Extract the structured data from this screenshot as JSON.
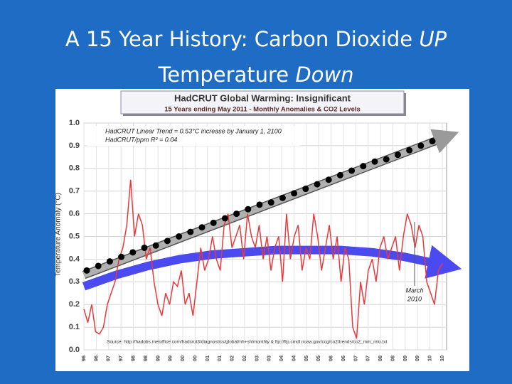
{
  "slide_title": {
    "line1": "A 15 Year History: Carbon Dioxide",
    "line1_emphasis": "UP",
    "line2": "Temperature",
    "line2_emphasis": "Down"
  },
  "chart_data": {
    "type": "line",
    "title": "HadCRUT Global Warming: Insignificant",
    "subtitle": "15 Years ending May 2011 - Monthly Anomalies & CO2 Levels",
    "y_label": "Temperature Anomaly (°C)",
    "ylim": [
      0,
      1
    ],
    "yticks": [
      {
        "value": 0,
        "label": "0.0"
      },
      0.1,
      0.2,
      0.3,
      0.4,
      0.5,
      0.6,
      0.7,
      0.8,
      0.9,
      {
        "value": 1,
        "label": "1.0"
      }
    ],
    "grid": true,
    "xtick_labels": [
      "96",
      "96",
      "97",
      "97",
      "98",
      "98",
      "99",
      "99",
      "00",
      "00",
      "01",
      "01",
      "02",
      "02",
      "03",
      "03",
      "04",
      "04",
      "05",
      "05",
      "06",
      "06",
      "07",
      "07",
      "08",
      "08",
      "09",
      "09",
      "10",
      "10"
    ],
    "temperature": {
      "color": "#e8393c",
      "values": [
        0.18,
        0.12,
        0.2,
        0.08,
        0.07,
        0.1,
        0.2,
        0.25,
        0.3,
        0.4,
        0.45,
        0.55,
        0.75,
        0.5,
        0.6,
        0.55,
        0.4,
        0.45,
        0.3,
        0.2,
        0.15,
        0.25,
        0.2,
        0.3,
        0.28,
        0.35,
        0.2,
        0.25,
        0.15,
        0.3,
        0.45,
        0.35,
        0.4,
        0.5,
        0.4,
        0.35,
        0.55,
        0.6,
        0.45,
        0.5,
        0.55,
        0.4,
        0.6,
        0.5,
        0.45,
        0.55,
        0.4,
        0.5,
        0.35,
        0.45,
        0.5,
        0.3,
        0.6,
        0.4,
        0.5,
        0.55,
        0.35,
        0.45,
        0.4,
        0.6,
        0.5,
        0.35,
        0.45,
        0.55,
        0.4,
        0.5,
        0.3,
        0.45,
        0.4,
        0.1,
        0.05,
        0.3,
        0.2,
        0.35,
        0.4,
        0.3,
        0.45,
        0.5,
        0.4,
        0.45,
        0.5,
        0.35,
        0.5,
        0.6,
        0.55,
        0.45,
        0.55,
        0.5,
        0.3,
        0.25,
        0.2,
        0.35,
        0.38
      ]
    },
    "co2": {
      "color": "#000000",
      "values": [
        0.35,
        0.37,
        0.39,
        0.41,
        0.43,
        0.45,
        0.46,
        0.48,
        0.5,
        0.52,
        0.54,
        0.56,
        0.58,
        0.6,
        0.62,
        0.64,
        0.65,
        0.67,
        0.69,
        0.71,
        0.73,
        0.75,
        0.77,
        0.79,
        0.81,
        0.83,
        0.84,
        0.86,
        0.88,
        0.9,
        0.92
      ]
    },
    "linear_trend": {
      "color": "#b0b0b0",
      "values": [
        0.33,
        0.93
      ]
    },
    "curve_trend": {
      "color": "#4a4af0",
      "values": [
        0.28,
        0.33,
        0.37,
        0.4,
        0.42,
        0.43,
        0.44,
        0.44,
        0.44,
        0.43,
        0.41,
        0.38
      ]
    },
    "annotations": [
      "HadCRUT Linear Trend = 0.53°C increase by January 1, 2100",
      "HadCRUT/ppm R² = 0.04",
      "March",
      "2010"
    ],
    "source": "Source: http://hadobs.metoffice.com/hadcrut3/diagnostics/global/nh+sh/monthly & ftp://ftp.cmdl.noaa.gov/ccg/co2/trends/co2_mm_mlo.txt"
  }
}
